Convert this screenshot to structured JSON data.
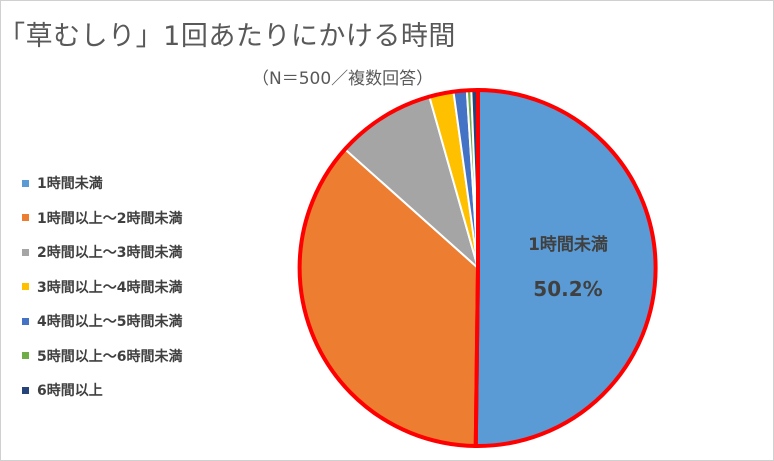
{
  "chart_data": {
    "type": "pie",
    "title": "「草むしり」1回あたりにかける時間",
    "subtitle": "（N＝500／複数回答）",
    "categories": [
      "1時間未満",
      "1時間以上～2時間未満",
      "2時間以上～3時間未満",
      "3時間以上～4時間未満",
      "4時間以上～5時間未満",
      "5時間以上～6時間未満",
      "6時間以上"
    ],
    "values": [
      50.2,
      36.4,
      9.0,
      2.2,
      1.2,
      0.4,
      0.6
    ],
    "colors": [
      "#5b9bd5",
      "#ed7d31",
      "#a5a5a5",
      "#ffc000",
      "#4472c4",
      "#70ad47",
      "#264478"
    ],
    "highlight_color": "#ff0000",
    "highlighted_slice": "1時間未満",
    "data_label": {
      "category": "1時間未満",
      "value": "50.2%"
    },
    "legend_position": "left"
  }
}
